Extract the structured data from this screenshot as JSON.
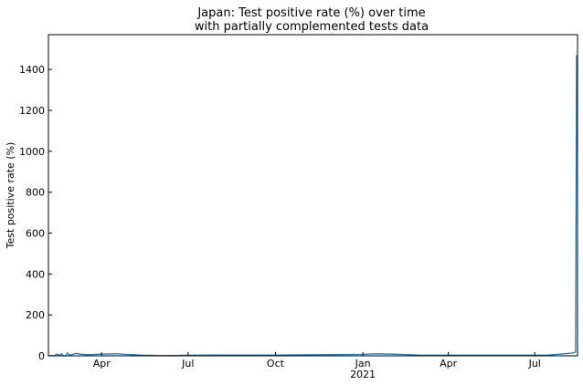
{
  "chart_data": {
    "type": "line",
    "title": [
      "Japan: Test positive rate (%) over time",
      "with partially complemented tests data"
    ],
    "xlabel": "",
    "ylabel": "Test positive rate (%)",
    "xlim": [
      "2020-02-05",
      "2021-08-15"
    ],
    "ylim": [
      0,
      1570
    ],
    "yticks": [
      0,
      200,
      400,
      600,
      800,
      1000,
      1200,
      1400
    ],
    "xticks": [
      {
        "date": "2020-04-01",
        "label": "Apr"
      },
      {
        "date": "2020-07-01",
        "label": "Jul"
      },
      {
        "date": "2020-10-01",
        "label": "Oct"
      },
      {
        "date": "2021-01-01",
        "label": "Jan",
        "sublabel": "2021"
      },
      {
        "date": "2021-04-01",
        "label": "Apr"
      },
      {
        "date": "2021-07-01",
        "label": "Jul"
      }
    ],
    "grid": false,
    "series": [
      {
        "color": "#1f77b4",
        "x": [
          "2020-02-05",
          "2020-02-08",
          "2020-02-11",
          "2020-02-14",
          "2020-02-17",
          "2020-02-19",
          "2020-02-21",
          "2020-02-23",
          "2020-02-25",
          "2020-02-27",
          "2020-03-01",
          "2020-03-05",
          "2020-03-10",
          "2020-03-15",
          "2020-03-20",
          "2020-04-01",
          "2020-04-15",
          "2020-04-20",
          "2020-05-01",
          "2020-05-15",
          "2020-06-01",
          "2020-06-15",
          "2020-07-01",
          "2020-08-01",
          "2020-09-01",
          "2020-10-01",
          "2020-11-01",
          "2020-12-01",
          "2021-01-01",
          "2021-01-15",
          "2021-02-01",
          "2021-03-01",
          "2021-04-01",
          "2021-05-01",
          "2021-06-01",
          "2021-07-01",
          "2021-07-15",
          "2021-08-01",
          "2021-08-10",
          "2021-08-12",
          "2021-08-13",
          "2021-08-14"
        ],
        "y": [
          0,
          2,
          0,
          8,
          3,
          10,
          0,
          0,
          14,
          3,
          6,
          12,
          8,
          6,
          6,
          8,
          10,
          9,
          6,
          3,
          2,
          2,
          3,
          4,
          4,
          4,
          5,
          6,
          7,
          10,
          8,
          4,
          3,
          3,
          3,
          3,
          4,
          10,
          14,
          16,
          20,
          1470
        ]
      }
    ]
  }
}
